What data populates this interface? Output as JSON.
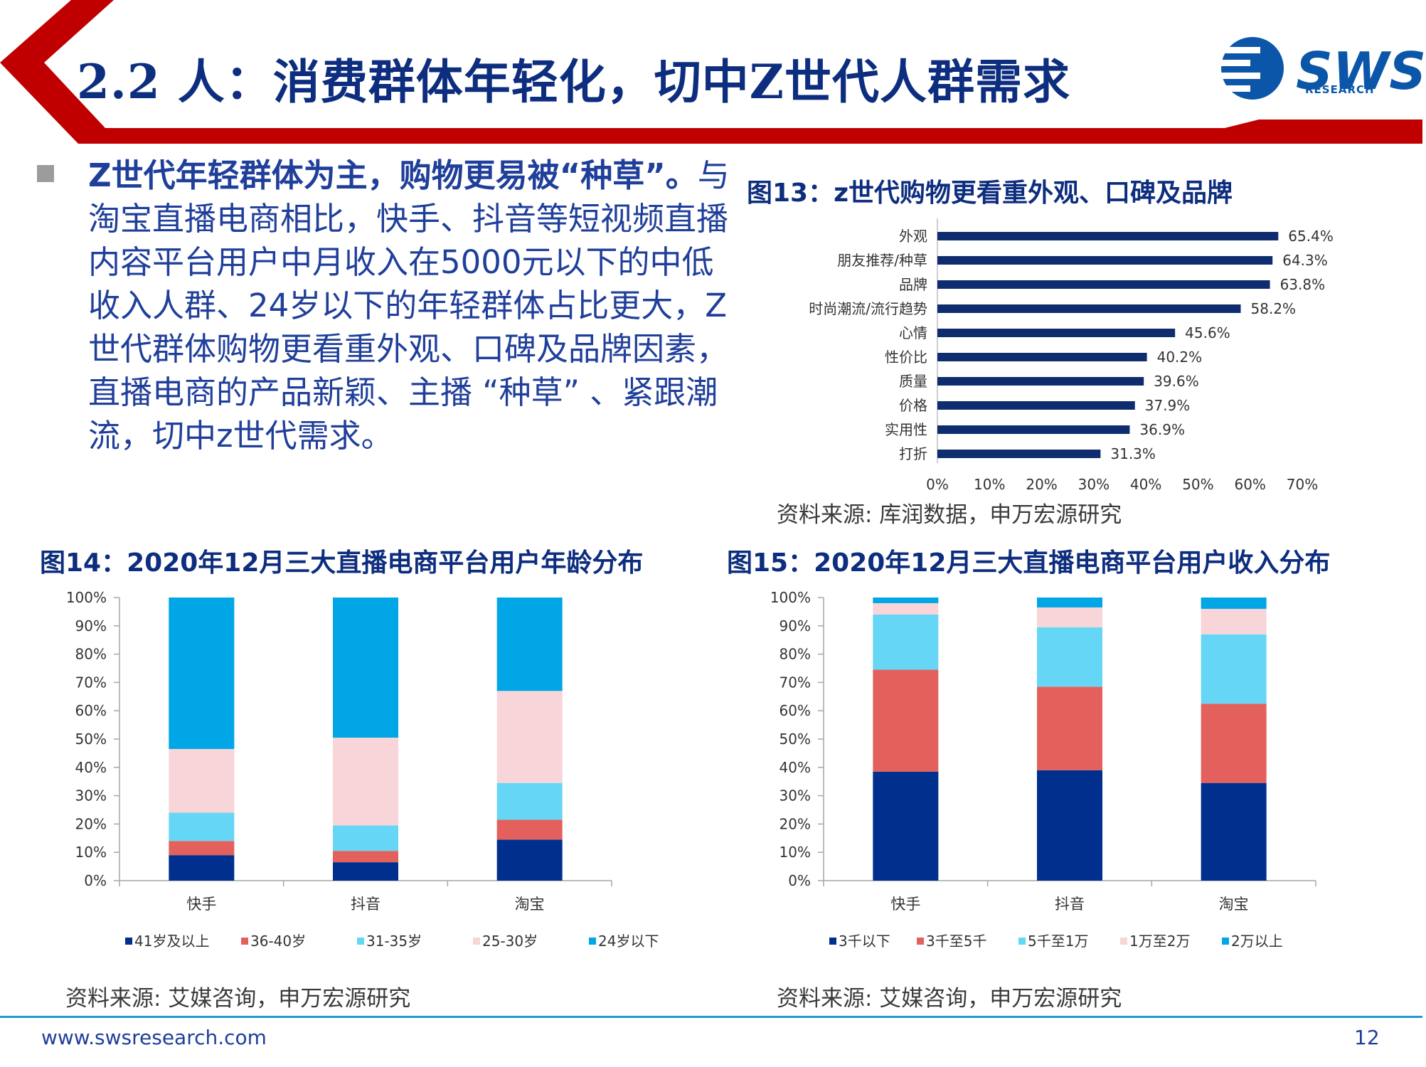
{
  "header": {
    "title": "2.2 人：消费群体年轻化，切中Z世代人群需求",
    "logo_text": "SWS",
    "logo_sub": "RESEARCH"
  },
  "intro": {
    "lead": "Z世代年轻群体为主，购物更易被“种草”。",
    "body": "与淘宝直播电商相比，快手、抖音等短视频直播内容平台用户中月收入在5000元以下的中低收入人群、24岁以下的年轻群体占比更大，Z世代群体购物更看重外观、口碑及品牌因素，直播电商的产品新颖、主播 “种草” 、紧跟潮流，切中z世代需求。"
  },
  "fig13": {
    "title": "图13：z世代购物更看重外观、口碑及品牌",
    "source": "资料来源: 库润数据，申万宏源研究"
  },
  "fig14": {
    "title": "图14：2020年12月三大直播电商平台用户年龄分布",
    "source": "资料来源: 艾媒咨询，申万宏源研究"
  },
  "fig15": {
    "title": "图15：2020年12月三大直播电商平台用户收入分布",
    "source": "资料来源: 艾媒咨询，申万宏源研究"
  },
  "footer": {
    "url": "www.swsresearch.com",
    "page": "12"
  },
  "colors": {
    "brand_red": "#c00000",
    "navy": "#0d2d7e",
    "bar_navy": "#0f2d6e"
  },
  "chart_data": [
    {
      "id": "fig13",
      "type": "bar",
      "orientation": "horizontal",
      "categories": [
        "外观",
        "朋友推荐/种草",
        "品牌",
        "时尚潮流/流行趋势",
        "心情",
        "性价比",
        "质量",
        "价格",
        "实用性",
        "打折"
      ],
      "values": [
        65.4,
        64.3,
        63.8,
        58.2,
        45.6,
        40.2,
        39.6,
        37.9,
        36.9,
        31.3
      ],
      "data_labels": [
        "65.4%",
        "64.3%",
        "63.8%",
        "58.2%",
        "45.6%",
        "40.2%",
        "39.6%",
        "37.9%",
        "36.9%",
        "31.3%"
      ],
      "xlim": [
        0,
        70
      ],
      "x_ticks": [
        "0%",
        "10%",
        "20%",
        "30%",
        "40%",
        "50%",
        "60%",
        "70%"
      ],
      "color": "#0f2d6e"
    },
    {
      "id": "fig14",
      "type": "bar",
      "stacked": true,
      "categories": [
        "快手",
        "抖音",
        "淘宝"
      ],
      "series": [
        {
          "name": "41岁及以上",
          "values": [
            9,
            6.5,
            14.5
          ],
          "color": "#002f8e"
        },
        {
          "name": "36-40岁",
          "values": [
            5,
            4,
            7
          ],
          "color": "#e4605c"
        },
        {
          "name": "31-35岁",
          "values": [
            10,
            9,
            13
          ],
          "color": "#66d6f6"
        },
        {
          "name": "25-30岁",
          "values": [
            22.5,
            31,
            32.5
          ],
          "color": "#f8d5d9"
        },
        {
          "name": "24岁以下",
          "values": [
            53.5,
            49.5,
            33
          ],
          "color": "#00a6e6"
        }
      ],
      "ylim": [
        0,
        100
      ],
      "y_ticks": [
        "0%",
        "10%",
        "20%",
        "30%",
        "40%",
        "50%",
        "60%",
        "70%",
        "80%",
        "90%",
        "100%"
      ],
      "legend": "bottom"
    },
    {
      "id": "fig15",
      "type": "bar",
      "stacked": true,
      "categories": [
        "快手",
        "抖音",
        "淘宝"
      ],
      "series": [
        {
          "name": "3千以下",
          "values": [
            38.5,
            39,
            34.5
          ],
          "color": "#002f8e"
        },
        {
          "name": "3千至5千",
          "values": [
            36,
            29.5,
            28
          ],
          "color": "#e4605c"
        },
        {
          "name": "5千至1万",
          "values": [
            19.5,
            21,
            24.5
          ],
          "color": "#66d6f6"
        },
        {
          "name": "1万至2万",
          "values": [
            4,
            7,
            9
          ],
          "color": "#f8d5d9"
        },
        {
          "name": "2万以上",
          "values": [
            2,
            3.5,
            4
          ],
          "color": "#00a6e6"
        }
      ],
      "ylim": [
        0,
        100
      ],
      "y_ticks": [
        "0%",
        "10%",
        "20%",
        "30%",
        "40%",
        "50%",
        "60%",
        "70%",
        "80%",
        "90%",
        "100%"
      ],
      "legend": "bottom"
    }
  ]
}
